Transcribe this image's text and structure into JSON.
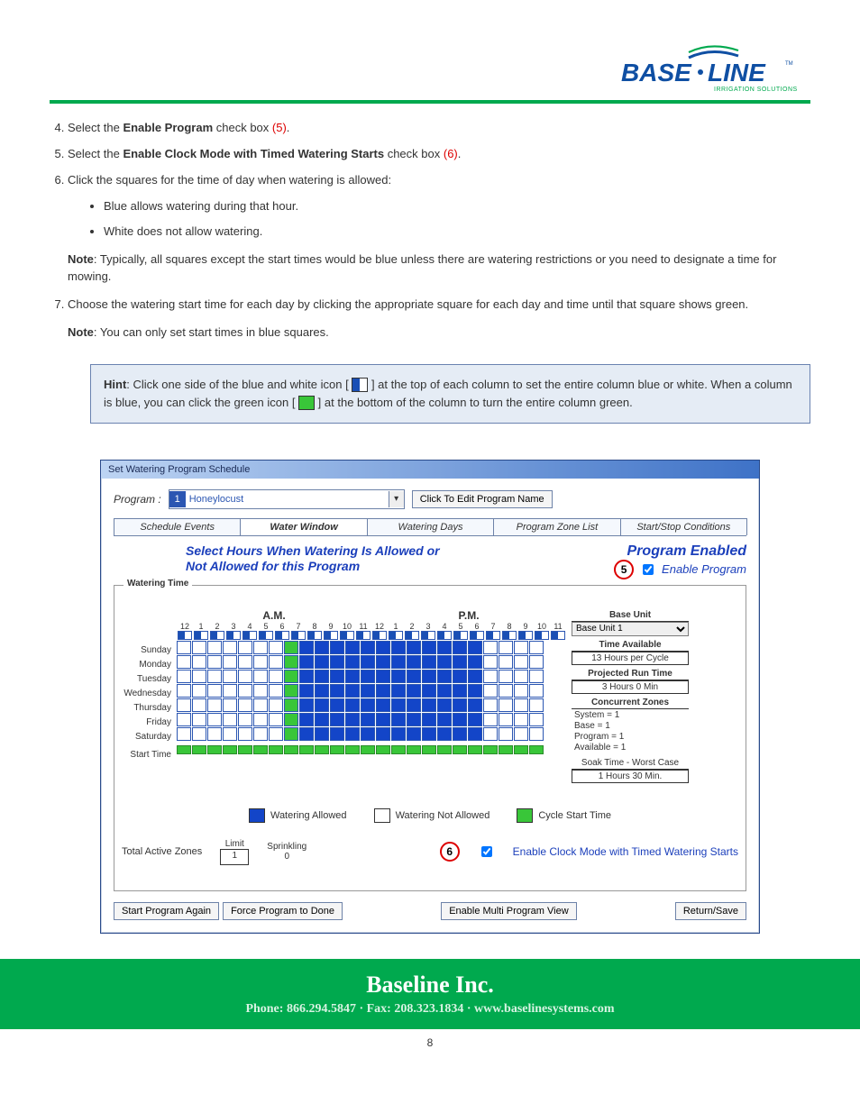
{
  "logo": {
    "text_main": "BASE",
    "text_dot": "·",
    "text_sub": "LINE",
    "tag": "IRRIGATION SOLUTIONS",
    "color_main": "#0f4fa3",
    "color_green": "#00a94e"
  },
  "instructions": {
    "i4": {
      "num": "4.",
      "pre": "Select the ",
      "bold": "Enable Program",
      "post": " check box ",
      "ref": "(5)",
      "end": "."
    },
    "i5": {
      "num": "5.",
      "pre": "Select the ",
      "bold": "Enable Clock Mode with Timed Watering Starts",
      "post": " check box ",
      "ref": "(6)",
      "end": "."
    },
    "i6": {
      "num": "6.",
      "text": "Click the squares for the time of day when watering is allowed:",
      "bul1": "Blue allows watering during that hour.",
      "bul2": "White does not allow watering.",
      "note_lbl": "Note",
      "note": ": Typically, all squares except the start times would be blue unless there are watering restrictions or you need to designate a time for mowing."
    },
    "i7": {
      "num": "7.",
      "text": "Choose the watering start time for each day by clicking the appropriate square for each day and time until that square shows green.",
      "note_lbl": "Note",
      "note": ": You can only set start times in blue squares."
    }
  },
  "hint": {
    "label": "Hint",
    "p1": ": Click one side of the blue and white icon [ ",
    "p2": " ] at the top of each column to set the entire column blue or white. When a column is blue, you can click the green icon [ ",
    "p3": " ] at the bottom of the column to turn the entire column green."
  },
  "window": {
    "title": "Set Watering Program Schedule",
    "program_label": "Program :",
    "program_num": "1",
    "program_name": "Honeylocust",
    "btn_edit": "Click To Edit Program Name",
    "tabs": [
      "Schedule Events",
      "Water Window",
      "Watering Days",
      "Program Zone List",
      "Start/Stop Conditions"
    ],
    "active_tab": 1,
    "sel_text_l1": "Select Hours When Watering Is Allowed or",
    "sel_text_l2": "Not Allowed for this Program",
    "pe_title": "Program Enabled",
    "enable_label": "Enable Program",
    "circ5": "5",
    "wt_title": "Watering Time",
    "am": "A.M.",
    "pm": "P.M.",
    "hours": [
      "12",
      "1",
      "2",
      "3",
      "4",
      "5",
      "6",
      "7",
      "8",
      "9",
      "10",
      "11",
      "12",
      "1",
      "2",
      "3",
      "4",
      "5",
      "6",
      "7",
      "8",
      "9",
      "10",
      "11"
    ],
    "days": [
      "Sunday",
      "Monday",
      "Tuesday",
      "Wednesday",
      "Thursday",
      "Friday",
      "Saturday"
    ],
    "start_label": "Start Time",
    "schedule_blue_range": [
      7,
      19
    ],
    "green_col": 7,
    "side": {
      "base_head": "Base Unit",
      "base_sel": "Base Unit 1",
      "time_head": "Time Available",
      "time_val": "13 Hours per Cycle",
      "proj_head": "Projected Run Time",
      "proj_val": "3 Hours   0 Min",
      "conc_head": "Concurrent Zones",
      "conc_lines": [
        "System = 1",
        "Base = 1",
        "Program = 1",
        "Available  = 1"
      ],
      "soak_head": "Soak Time - Worst Case",
      "soak_val": "1 Hours   30 Min."
    },
    "legend": {
      "allowed": "Watering Allowed",
      "notallowed": "Watering Not Allowed",
      "cycle": "Cycle Start Time"
    },
    "bottom": {
      "taz": "Total Active Zones",
      "limit": "Limit",
      "limit_val": "1",
      "sprink": "Sprinkling",
      "sprink_val": "0",
      "circ6": "6",
      "enable_clock": "Enable Clock Mode with Timed Watering Starts"
    },
    "btns": {
      "b1": "Start Program Again",
      "b2": "Force Program to Done",
      "b3": "Enable Multi Program View",
      "b4": "Return/Save"
    }
  },
  "footer": {
    "title": "Baseline Inc.",
    "sub": "Phone:  866.294.5847  ·  Fax:  208.323.1834  ·  www.baselinesystems.com",
    "page": "8"
  },
  "colors": {
    "blue": "#1345c8",
    "green": "#39c639",
    "brand_green": "#00a94e",
    "brand_blue": "#1b3fbb"
  }
}
